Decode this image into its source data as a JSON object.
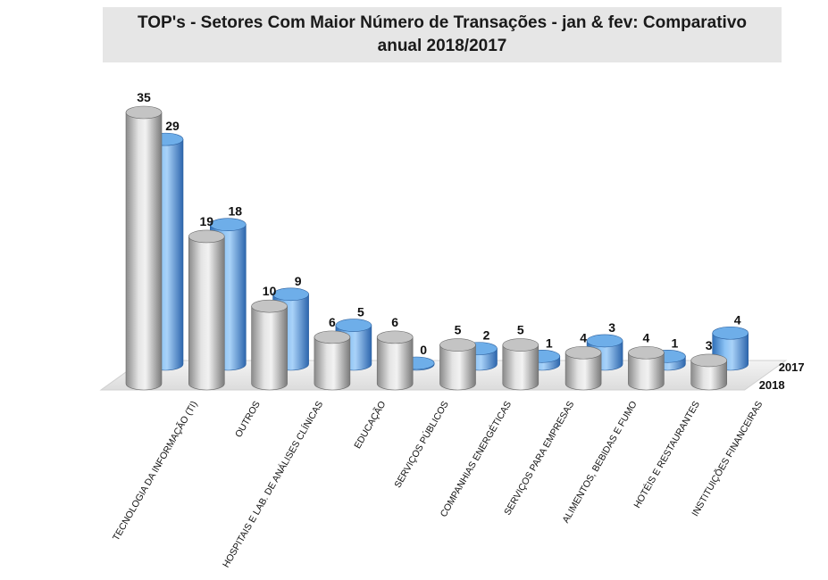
{
  "chart_data": {
    "type": "bar",
    "title_line1": "TOP's - Setores Com Maior Número de Transações  - jan & fev: Comparativo",
    "title_line2": "anual 2018/2017",
    "categories": [
      "TECNOLOGIA DA INFORMAÇÃO (TI)",
      "OUTROS",
      "HOSPITAIS E LAB. DE ANÁLISES CLÍNICAS",
      "EDUCAÇÃO",
      "SERVIÇOS PÚBLICOS",
      "COMPANHIAS ENERGÉTICAS",
      "SERVIÇOS PARA EMPRESAS",
      "ALIMENTOS, BEBIDAS E FUMO",
      "HOTÉIS E RESTAURANTES",
      "INSTITUIÇÕES FINANCEIRAS"
    ],
    "series": [
      {
        "name": "2018",
        "values": [
          35,
          19,
          10,
          6,
          6,
          5,
          5,
          4,
          4,
          3
        ],
        "color": "#b9b9b9"
      },
      {
        "name": "2017",
        "values": [
          29,
          18,
          9,
          5,
          0,
          2,
          1,
          3,
          1,
          4
        ],
        "color": "#5ea2e6"
      }
    ],
    "ylim": [
      0,
      35
    ],
    "xlabel": "",
    "ylabel": "",
    "legend": "right, at depth labels"
  }
}
